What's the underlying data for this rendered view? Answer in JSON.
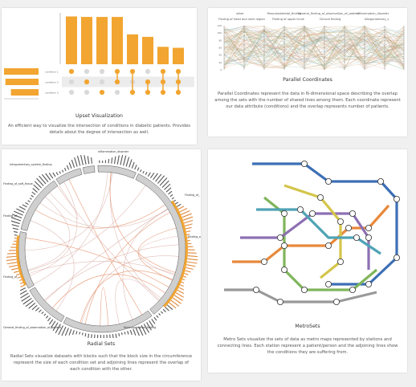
{
  "cards": {
    "upset": {
      "title": "Upset Visualization",
      "description": "An efficient way to visualize the intersection of conditions in diabetic patients. Provides details about the degree of intersection as well.",
      "set_labels": [
        "condition 1",
        "condition 2",
        "condition 3"
      ],
      "bar_values": [
        96,
        95,
        95,
        95,
        60,
        55,
        35,
        33
      ],
      "set_sizes": [
        100,
        96,
        80
      ]
    },
    "parallel": {
      "title": "Parallel Coordinates",
      "description": "Parallel Coordinates represent the data in N-dimensional space describing the overlap among the sets with the number of shared lines among them. Each coordinate represent our data attribute (conditions) and the overlap represents number of patients.",
      "axis_labels_top": [
        "other",
        "Musculoskeletal_finding",
        "General_finding_of_observation_of_patient",
        "Inflammation_disorder"
      ],
      "axis_labels_bottom": [
        "Finding of head and neck region",
        "Finding of upper trunk",
        "Clinical finding",
        "Integumentary_s"
      ]
    },
    "radial": {
      "title": "Radial Sets",
      "description": "Radial Sets visualize datasets with blocks such that the block size in the circumference represent the size of each condition set and adjoining lines represent the overlap of each condition with the other.",
      "labels": [
        "Inflammation_disorder",
        "Integumentary_system_finding",
        "Finding_of_soft_tissue",
        "Finding_of",
        "Finding_of_",
        "General_finding_of_observation_of_patient",
        "Musculoskeletal_finding",
        "Finding_of_",
        "Finding_of_"
      ]
    },
    "metro": {
      "title": "MetroSets",
      "description": "Metro Sets visualize the sets of data as metro maps represented by stations and connecting lines. Each station represent a patient/person and the adjoining lines show the conditions they are suffering from."
    }
  },
  "colors": {
    "accent_orange": "#f2a531",
    "gray": "#d9d9d9",
    "background": "#f0f0f0"
  }
}
